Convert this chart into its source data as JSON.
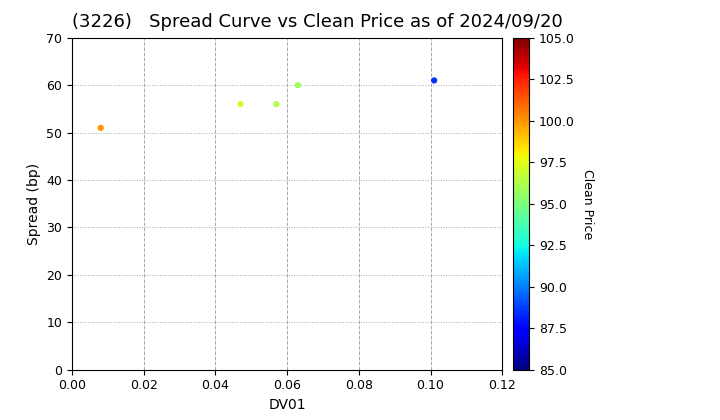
{
  "title": "(3226)   Spread Curve vs Clean Price as of 2024/09/20",
  "xlabel": "DV01",
  "ylabel": "Spread (bp)",
  "xlim": [
    0.0,
    0.12
  ],
  "ylim": [
    0,
    70
  ],
  "xticks": [
    0.0,
    0.02,
    0.04,
    0.06,
    0.08,
    0.1,
    0.12
  ],
  "yticks": [
    0,
    10,
    20,
    30,
    40,
    50,
    60,
    70
  ],
  "colorbar_label": "Clean Price",
  "colorbar_ticks": [
    85.0,
    87.5,
    90.0,
    92.5,
    95.0,
    97.5,
    100.0,
    102.5,
    105.0
  ],
  "cmap_vmin": 85.0,
  "cmap_vmax": 105.0,
  "points": [
    {
      "dv01": 0.008,
      "spread": 51,
      "clean_price": 100.0
    },
    {
      "dv01": 0.047,
      "spread": 56,
      "clean_price": 96.8
    },
    {
      "dv01": 0.057,
      "spread": 56,
      "clean_price": 96.2
    },
    {
      "dv01": 0.063,
      "spread": 60,
      "clean_price": 95.8
    },
    {
      "dv01": 0.101,
      "spread": 61,
      "clean_price": 88.5
    }
  ],
  "marker_size": 12,
  "grid_color": "#aaaaaa",
  "background_color": "#ffffff",
  "title_fontsize": 13,
  "axis_label_fontsize": 10,
  "tick_fontsize": 9,
  "colorbar_fontsize": 9
}
